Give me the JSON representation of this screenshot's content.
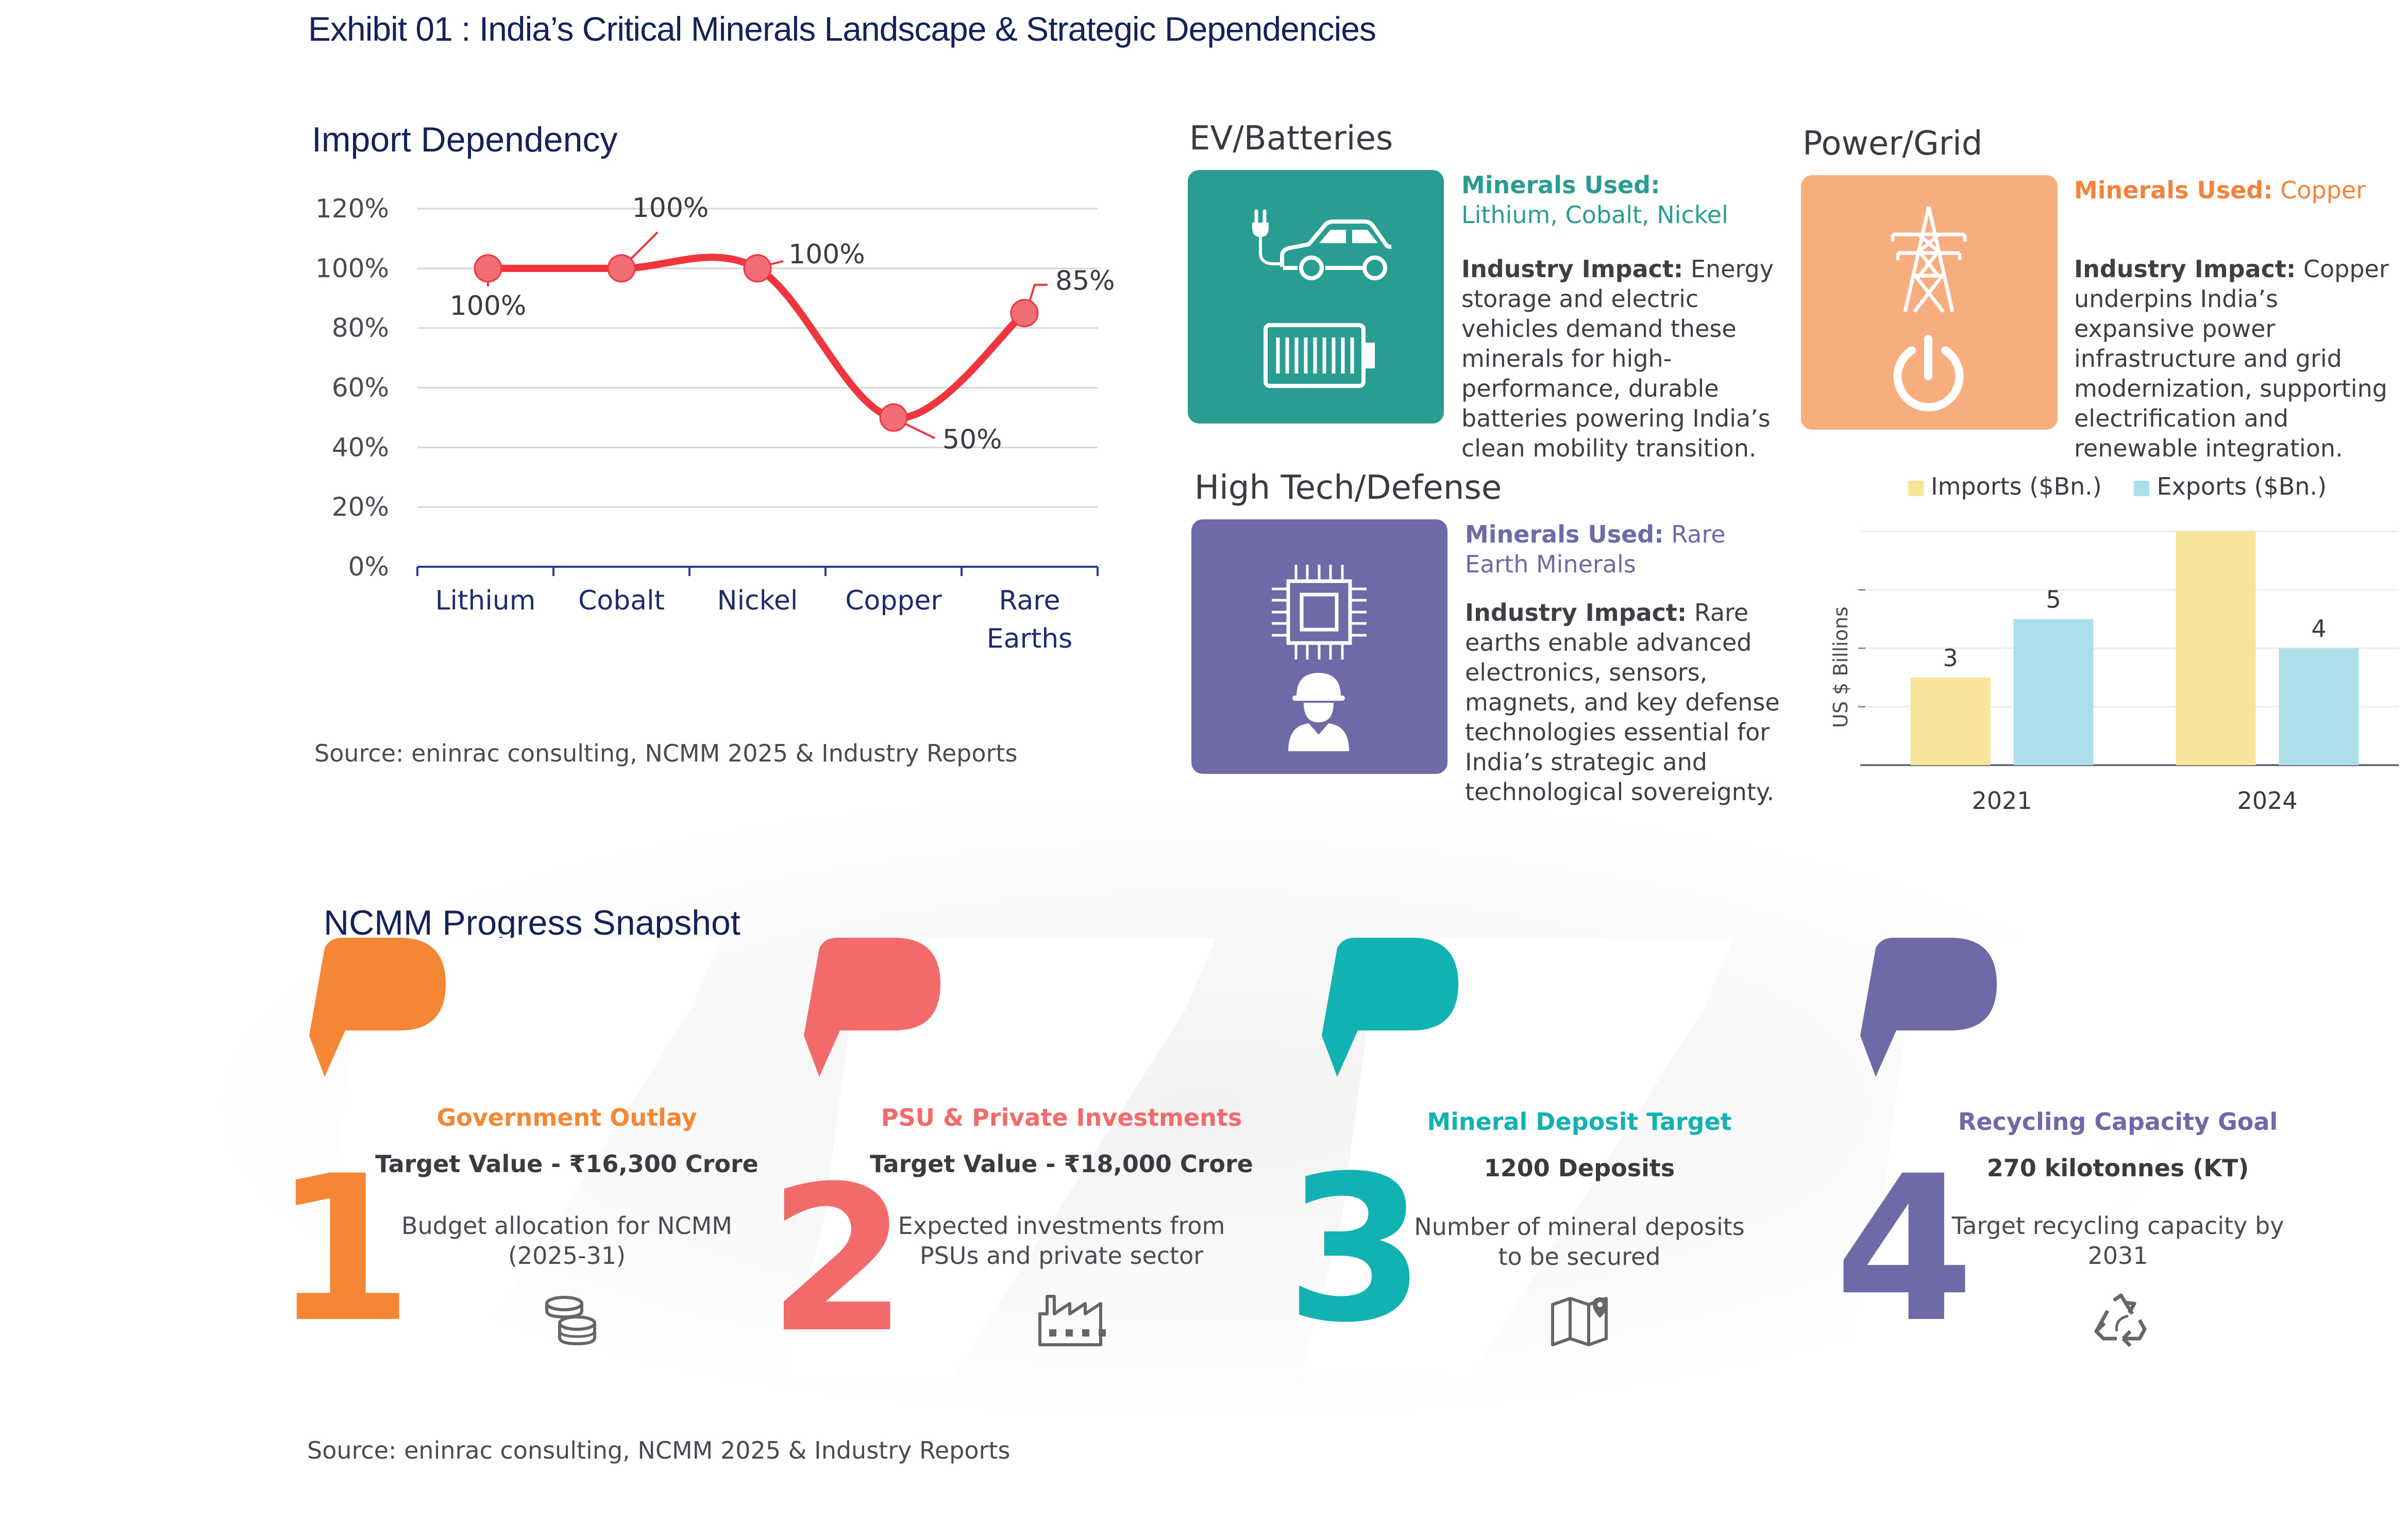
{
  "title": "Exhibit 01 : India’s Critical Minerals Landscape & Strategic Dependencies",
  "import_dependency": {
    "section_title": "Import Dependency",
    "source": "Source: eninrac consulting, NCMM 2025 & Industry Reports"
  },
  "industries": {
    "ev": {
      "title": "EV/Batteries",
      "minerals_label": "Minerals Used:",
      "minerals": "Lithium, Cobalt, Nickel",
      "impact_label": "Industry Impact:",
      "impact": "Energy storage and electric vehicles demand these minerals for high-performance, durable batteries powering India’s clean mobility transition.",
      "color": "#2a9d93"
    },
    "power": {
      "title": "Power/Grid",
      "minerals_label": "Minerals Used:",
      "minerals": "Copper",
      "impact_label": "Industry Impact:",
      "impact": "Copper underpins India’s expansive power infrastructure and grid modernization, supporting electrification and renewable integration.",
      "color": "#f8ad7f",
      "accent": "#f0843c"
    },
    "hightech": {
      "title": "High Tech/Defense",
      "minerals_label": "Minerals Used:",
      "minerals": "Rare Earth Minerals",
      "impact_label": "Industry Impact:",
      "impact": "Rare earths enable advanced electronics, sensors, magnets, and key defense technologies essential for India’s strategic and technological sovereignty.",
      "color": "#6e6aa8"
    }
  },
  "snapshot": {
    "title": "NCMM Progress Snapshot",
    "source": "Source: eninrac consulting, NCMM 2025 & Industry Reports",
    "items": [
      {
        "number": "1",
        "heading": "Government Outlay",
        "value": "Target Value - ₹16,300 Crore",
        "desc": "Budget allocation for NCMM (2025-31)",
        "icon": "coins-icon",
        "color": "#f58634"
      },
      {
        "number": "2",
        "heading": "PSU & Private Investments",
        "value": "Target Value - ₹18,000 Crore",
        "desc": "Expected investments from PSUs and private sector",
        "icon": "factory-icon",
        "color": "#f26a6a"
      },
      {
        "number": "3",
        "heading": "Mineral Deposit Target",
        "value": "1200 Deposits",
        "desc": "Number of mineral deposits to be secured",
        "icon": "map-icon",
        "color": "#13b2b2"
      },
      {
        "number": "4",
        "heading": "Recycling Capacity Goal",
        "value": "270 kilotonnes (KT)",
        "desc": "Target recycling capacity by 2031",
        "icon": "recycle-icon",
        "color": "#6e6aa8"
      }
    ]
  },
  "chart_data": [
    {
      "type": "line",
      "title": "Import Dependency",
      "categories": [
        "Lithium",
        "Cobalt",
        "Nickel",
        "Copper",
        "Rare Earths"
      ],
      "values": [
        100,
        100,
        100,
        50,
        85
      ],
      "data_labels": [
        "100%",
        "100%",
        "100%",
        "50%",
        "85%"
      ],
      "ylim": [
        0,
        120
      ],
      "yticks": [
        "0%",
        "20%",
        "40%",
        "60%",
        "80%",
        "100%",
        "120%"
      ],
      "grid": true,
      "color": "#f0353f"
    },
    {
      "type": "bar",
      "categories": [
        "2021",
        "2024"
      ],
      "series": [
        {
          "name": "Imports ($Bn.)",
          "values": [
            3,
            8
          ],
          "color": "#f9e59a"
        },
        {
          "name": "Exports ($Bn.)",
          "values": [
            5,
            4
          ],
          "color": "#acdfe9"
        }
      ],
      "ylabel": "US $ Billions",
      "ylim": [
        0,
        8.2
      ],
      "grid": true,
      "legend": "top"
    }
  ]
}
